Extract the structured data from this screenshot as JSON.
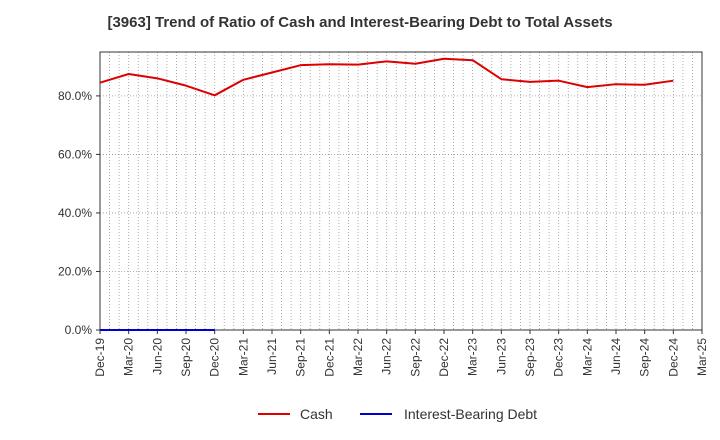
{
  "chart_data": {
    "type": "line",
    "title": "[3963]  Trend of Ratio of Cash and Interest-Bearing Debt to Total Assets",
    "xlabel": "",
    "ylabel": "",
    "ylim": [
      0,
      0.95
    ],
    "y_ticks": [
      0.0,
      0.2,
      0.4,
      0.6,
      0.8
    ],
    "y_tick_labels": [
      "0.0%",
      "20.0%",
      "40.0%",
      "60.0%",
      "80.0%"
    ],
    "x": [
      "Dec-19",
      "Mar-20",
      "Jun-20",
      "Sep-20",
      "Dec-20",
      "Mar-21",
      "Jun-21",
      "Sep-21",
      "Dec-21",
      "Mar-22",
      "Jun-22",
      "Sep-22",
      "Dec-22",
      "Mar-23",
      "Jun-23",
      "Sep-23",
      "Dec-23",
      "Mar-24",
      "Jun-24",
      "Sep-24",
      "Dec-24",
      "Mar-25"
    ],
    "grid": true,
    "legend_position": "bottom",
    "series": [
      {
        "name": "Cash",
        "color": "#dd0000",
        "values": [
          0.845,
          0.875,
          0.86,
          0.835,
          0.802,
          0.855,
          0.88,
          0.905,
          0.908,
          0.907,
          0.918,
          0.91,
          0.927,
          0.922,
          0.857,
          0.848,
          0.852,
          0.83,
          0.84,
          0.838,
          0.852,
          null
        ]
      },
      {
        "name": "Interest-Bearing Debt",
        "color": "#0000cc",
        "values": [
          0.0,
          0.0,
          0.0,
          0.0,
          0.0,
          null,
          null,
          null,
          null,
          null,
          null,
          null,
          null,
          null,
          null,
          null,
          null,
          null,
          null,
          null,
          null,
          null
        ]
      }
    ]
  }
}
